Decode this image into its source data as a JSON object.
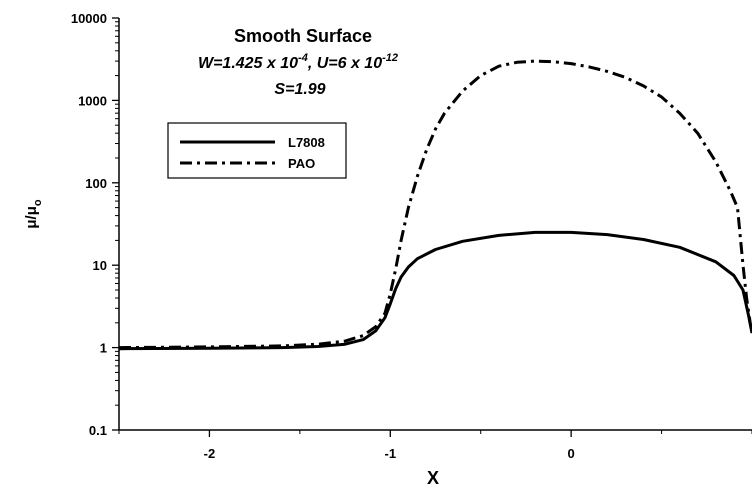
{
  "chart_data": {
    "type": "line",
    "title": "Smooth Surface",
    "annotations": {
      "line2_parts": [
        "W=1.425 x 10",
        "-4",
        ", U=6 x 10",
        "-12"
      ],
      "line3": "S=1.99"
    },
    "xlabel": "X",
    "ylabel": {
      "main": "μ/μ",
      "sub": "o"
    },
    "xlim": [
      -2.5,
      1.0
    ],
    "ylim": [
      0.1,
      10000
    ],
    "yscale": "log",
    "x_ticks": [
      -2,
      -1,
      0
    ],
    "x_tick_labels": [
      "-2",
      "-1",
      "0"
    ],
    "y_ticks": [
      0.1,
      1,
      10,
      100,
      1000,
      10000
    ],
    "y_tick_labels": [
      "0.1",
      "1",
      "10",
      "100",
      "1000",
      "10000"
    ],
    "grid": false,
    "legend_placement": "top-left",
    "series": [
      {
        "name": "L7808",
        "style": "solid",
        "x": [
          -2.5,
          -2.0,
          -1.6,
          -1.4,
          -1.25,
          -1.15,
          -1.08,
          -1.03,
          -1.0,
          -0.97,
          -0.94,
          -0.9,
          -0.85,
          -0.75,
          -0.6,
          -0.4,
          -0.2,
          0.0,
          0.2,
          0.4,
          0.6,
          0.8,
          0.9,
          0.95,
          0.98,
          1.0
        ],
        "y": [
          0.97,
          0.98,
          1.0,
          1.03,
          1.1,
          1.25,
          1.6,
          2.3,
          3.4,
          5.2,
          7.2,
          9.5,
          12,
          15.5,
          19.5,
          23,
          25,
          25,
          23.5,
          20.5,
          16.5,
          11,
          7.5,
          5,
          2.5,
          1.5
        ]
      },
      {
        "name": "PAO",
        "style": "dash-dot",
        "x": [
          -2.5,
          -2.0,
          -1.6,
          -1.4,
          -1.25,
          -1.15,
          -1.08,
          -1.03,
          -1.0,
          -0.97,
          -0.94,
          -0.9,
          -0.85,
          -0.8,
          -0.75,
          -0.7,
          -0.6,
          -0.5,
          -0.4,
          -0.3,
          -0.2,
          -0.1,
          0.0,
          0.1,
          0.2,
          0.3,
          0.4,
          0.5,
          0.6,
          0.7,
          0.8,
          0.88,
          0.92,
          0.95,
          0.97,
          0.99,
          1.0
        ],
        "y": [
          1.0,
          1.02,
          1.05,
          1.1,
          1.2,
          1.4,
          1.8,
          2.6,
          4.5,
          9,
          20,
          50,
          120,
          250,
          450,
          700,
          1300,
          2000,
          2600,
          2900,
          3000,
          2950,
          2800,
          2550,
          2250,
          1900,
          1500,
          1100,
          700,
          400,
          180,
          80,
          50,
          10,
          4,
          2,
          1.5
        ]
      }
    ]
  }
}
